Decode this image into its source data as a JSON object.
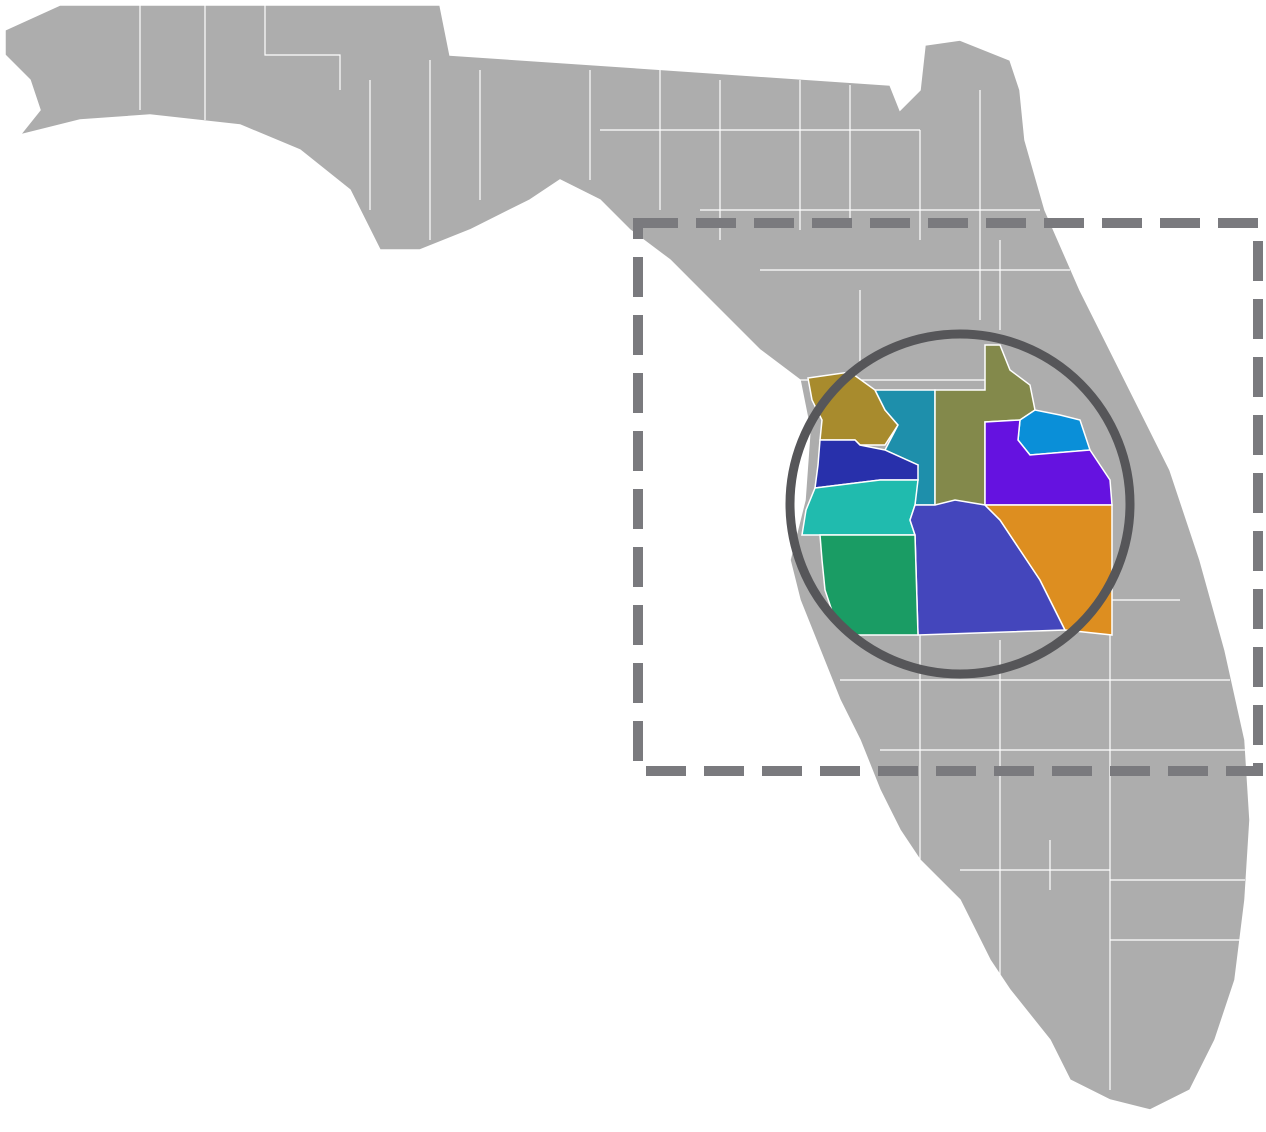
{
  "map": {
    "region_colors": [
      "#a88b2d",
      "#1e8fab",
      "#83894b",
      "#0a8fd8",
      "#2830ab",
      "#6512e0",
      "#20bbae",
      "#4446bc",
      "#dd8e20",
      "#1a9c64"
    ]
  }
}
